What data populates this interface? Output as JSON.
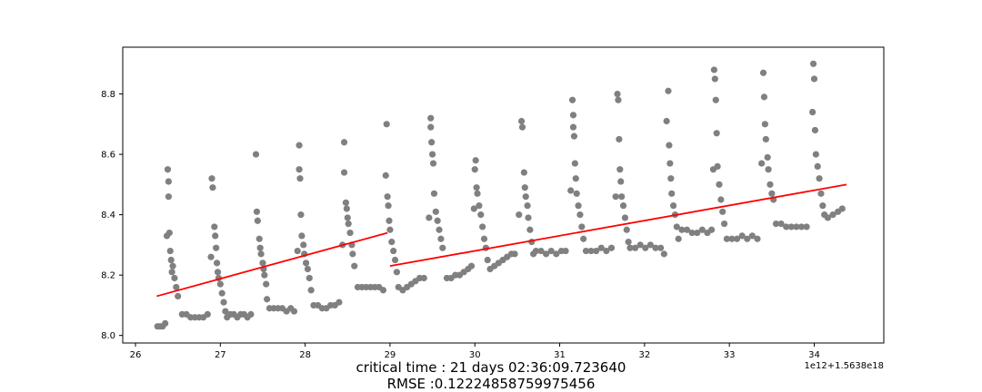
{
  "chart_data": {
    "type": "scatter",
    "title": "",
    "xlabel": "",
    "ylabel": "",
    "xlim": [
      25.85,
      34.82
    ],
    "ylim": [
      7.975,
      8.955
    ],
    "x_offset_text": "1e12+1.5638e18",
    "x_ticks": [
      26,
      27,
      28,
      29,
      30,
      31,
      32,
      33,
      34
    ],
    "x_tick_labels": [
      "26",
      "27",
      "28",
      "29",
      "30",
      "31",
      "32",
      "33",
      "34"
    ],
    "y_ticks": [
      8.0,
      8.2,
      8.4,
      8.6,
      8.8
    ],
    "y_tick_labels": [
      "8.0",
      "8.2",
      "8.4",
      "8.6",
      "8.8"
    ],
    "grid": false,
    "series": [
      {
        "kind": "scatter",
        "color": "#808080",
        "points": [
          [
            26.26,
            8.03
          ],
          [
            26.29,
            8.03
          ],
          [
            26.32,
            8.03
          ],
          [
            26.35,
            8.04
          ],
          [
            26.37,
            8.33
          ],
          [
            26.38,
            8.55
          ],
          [
            26.39,
            8.51
          ],
          [
            26.39,
            8.46
          ],
          [
            26.4,
            8.34
          ],
          [
            26.41,
            8.28
          ],
          [
            26.42,
            8.25
          ],
          [
            26.43,
            8.21
          ],
          [
            26.44,
            8.23
          ],
          [
            26.46,
            8.19
          ],
          [
            26.48,
            8.16
          ],
          [
            26.5,
            8.13
          ],
          [
            26.55,
            8.07
          ],
          [
            26.6,
            8.07
          ],
          [
            26.65,
            8.06
          ],
          [
            26.7,
            8.06
          ],
          [
            26.75,
            8.06
          ],
          [
            26.8,
            8.06
          ],
          [
            26.85,
            8.07
          ],
          [
            26.89,
            8.26
          ],
          [
            26.9,
            8.52
          ],
          [
            26.91,
            8.49
          ],
          [
            26.93,
            8.36
          ],
          [
            26.94,
            8.33
          ],
          [
            26.95,
            8.29
          ],
          [
            26.96,
            8.24
          ],
          [
            26.97,
            8.21
          ],
          [
            26.98,
            8.19
          ],
          [
            27.0,
            8.17
          ],
          [
            27.02,
            8.14
          ],
          [
            27.04,
            8.11
          ],
          [
            27.06,
            8.08
          ],
          [
            27.08,
            8.06
          ],
          [
            27.12,
            8.07
          ],
          [
            27.16,
            8.07
          ],
          [
            27.2,
            8.06
          ],
          [
            27.24,
            8.07
          ],
          [
            27.28,
            8.07
          ],
          [
            27.32,
            8.06
          ],
          [
            27.36,
            8.07
          ],
          [
            27.42,
            8.6
          ],
          [
            27.43,
            8.41
          ],
          [
            27.44,
            8.38
          ],
          [
            27.46,
            8.32
          ],
          [
            27.47,
            8.29
          ],
          [
            27.48,
            8.27
          ],
          [
            27.5,
            8.24
          ],
          [
            27.51,
            8.22
          ],
          [
            27.52,
            8.2
          ],
          [
            27.54,
            8.17
          ],
          [
            27.55,
            8.12
          ],
          [
            27.58,
            8.09
          ],
          [
            27.63,
            8.09
          ],
          [
            27.68,
            8.09
          ],
          [
            27.73,
            8.09
          ],
          [
            27.78,
            8.08
          ],
          [
            27.83,
            8.09
          ],
          [
            27.87,
            8.08
          ],
          [
            27.91,
            8.28
          ],
          [
            27.93,
            8.63
          ],
          [
            27.93,
            8.55
          ],
          [
            27.94,
            8.52
          ],
          [
            27.95,
            8.4
          ],
          [
            27.96,
            8.33
          ],
          [
            27.98,
            8.3
          ],
          [
            27.99,
            8.27
          ],
          [
            28.01,
            8.24
          ],
          [
            28.03,
            8.22
          ],
          [
            28.05,
            8.19
          ],
          [
            28.07,
            8.15
          ],
          [
            28.1,
            8.1
          ],
          [
            28.15,
            8.1
          ],
          [
            28.2,
            8.09
          ],
          [
            28.25,
            8.09
          ],
          [
            28.3,
            8.1
          ],
          [
            28.35,
            8.1
          ],
          [
            28.4,
            8.11
          ],
          [
            28.44,
            8.3
          ],
          [
            28.46,
            8.64
          ],
          [
            28.46,
            8.54
          ],
          [
            28.48,
            8.44
          ],
          [
            28.49,
            8.42
          ],
          [
            28.5,
            8.39
          ],
          [
            28.51,
            8.37
          ],
          [
            28.53,
            8.34
          ],
          [
            28.55,
            8.3
          ],
          [
            28.56,
            8.27
          ],
          [
            28.58,
            8.23
          ],
          [
            28.62,
            8.16
          ],
          [
            28.67,
            8.16
          ],
          [
            28.72,
            8.16
          ],
          [
            28.77,
            8.16
          ],
          [
            28.82,
            8.16
          ],
          [
            28.87,
            8.16
          ],
          [
            28.92,
            8.15
          ],
          [
            28.95,
            8.53
          ],
          [
            28.96,
            8.7
          ],
          [
            28.97,
            8.46
          ],
          [
            28.98,
            8.43
          ],
          [
            28.99,
            8.38
          ],
          [
            29.0,
            8.35
          ],
          [
            29.02,
            8.31
          ],
          [
            29.04,
            8.28
          ],
          [
            29.06,
            8.25
          ],
          [
            29.08,
            8.21
          ],
          [
            29.1,
            8.16
          ],
          [
            29.15,
            8.15
          ],
          [
            29.2,
            8.16
          ],
          [
            29.25,
            8.17
          ],
          [
            29.3,
            8.18
          ],
          [
            29.35,
            8.19
          ],
          [
            29.4,
            8.19
          ],
          [
            29.46,
            8.39
          ],
          [
            29.48,
            8.72
          ],
          [
            29.48,
            8.69
          ],
          [
            29.49,
            8.64
          ],
          [
            29.5,
            8.6
          ],
          [
            29.51,
            8.57
          ],
          [
            29.52,
            8.47
          ],
          [
            29.54,
            8.41
          ],
          [
            29.56,
            8.38
          ],
          [
            29.58,
            8.35
          ],
          [
            29.6,
            8.32
          ],
          [
            29.62,
            8.29
          ],
          [
            29.67,
            8.19
          ],
          [
            29.72,
            8.19
          ],
          [
            29.77,
            8.2
          ],
          [
            29.82,
            8.2
          ],
          [
            29.87,
            8.21
          ],
          [
            29.92,
            8.22
          ],
          [
            29.96,
            8.23
          ],
          [
            29.99,
            8.42
          ],
          [
            30.0,
            8.55
          ],
          [
            30.01,
            8.58
          ],
          [
            30.02,
            8.49
          ],
          [
            30.03,
            8.47
          ],
          [
            30.05,
            8.43
          ],
          [
            30.07,
            8.4
          ],
          [
            30.09,
            8.36
          ],
          [
            30.11,
            8.32
          ],
          [
            30.13,
            8.29
          ],
          [
            30.15,
            8.25
          ],
          [
            30.18,
            8.22
          ],
          [
            30.23,
            8.23
          ],
          [
            30.28,
            8.24
          ],
          [
            30.33,
            8.25
          ],
          [
            30.38,
            8.26
          ],
          [
            30.43,
            8.27
          ],
          [
            30.47,
            8.27
          ],
          [
            30.52,
            8.4
          ],
          [
            30.55,
            8.71
          ],
          [
            30.56,
            8.69
          ],
          [
            30.58,
            8.54
          ],
          [
            30.59,
            8.49
          ],
          [
            30.6,
            8.46
          ],
          [
            30.62,
            8.43
          ],
          [
            30.63,
            8.39
          ],
          [
            30.65,
            8.35
          ],
          [
            30.67,
            8.31
          ],
          [
            30.69,
            8.27
          ],
          [
            30.72,
            8.28
          ],
          [
            30.78,
            8.28
          ],
          [
            30.84,
            8.27
          ],
          [
            30.9,
            8.28
          ],
          [
            30.96,
            8.27
          ],
          [
            31.02,
            8.28
          ],
          [
            31.07,
            8.28
          ],
          [
            31.13,
            8.48
          ],
          [
            31.15,
            8.78
          ],
          [
            31.16,
            8.73
          ],
          [
            31.16,
            8.69
          ],
          [
            31.17,
            8.66
          ],
          [
            31.18,
            8.57
          ],
          [
            31.19,
            8.52
          ],
          [
            31.2,
            8.47
          ],
          [
            31.22,
            8.43
          ],
          [
            31.24,
            8.4
          ],
          [
            31.26,
            8.36
          ],
          [
            31.28,
            8.32
          ],
          [
            31.31,
            8.28
          ],
          [
            31.37,
            8.28
          ],
          [
            31.43,
            8.28
          ],
          [
            31.49,
            8.29
          ],
          [
            31.55,
            8.28
          ],
          [
            31.61,
            8.29
          ],
          [
            31.66,
            8.46
          ],
          [
            31.68,
            8.8
          ],
          [
            31.69,
            8.78
          ],
          [
            31.7,
            8.65
          ],
          [
            31.71,
            8.55
          ],
          [
            31.72,
            8.51
          ],
          [
            31.73,
            8.46
          ],
          [
            31.75,
            8.43
          ],
          [
            31.77,
            8.39
          ],
          [
            31.79,
            8.35
          ],
          [
            31.81,
            8.31
          ],
          [
            31.83,
            8.29
          ],
          [
            31.89,
            8.29
          ],
          [
            31.95,
            8.3
          ],
          [
            32.01,
            8.29
          ],
          [
            32.07,
            8.3
          ],
          [
            32.13,
            8.29
          ],
          [
            32.19,
            8.29
          ],
          [
            32.23,
            8.27
          ],
          [
            32.26,
            8.71
          ],
          [
            32.28,
            8.81
          ],
          [
            32.29,
            8.63
          ],
          [
            32.3,
            8.57
          ],
          [
            32.31,
            8.52
          ],
          [
            32.32,
            8.47
          ],
          [
            32.34,
            8.43
          ],
          [
            32.36,
            8.4
          ],
          [
            32.38,
            8.36
          ],
          [
            32.4,
            8.32
          ],
          [
            32.44,
            8.35
          ],
          [
            32.5,
            8.35
          ],
          [
            32.56,
            8.34
          ],
          [
            32.62,
            8.34
          ],
          [
            32.68,
            8.35
          ],
          [
            32.74,
            8.34
          ],
          [
            32.79,
            8.35
          ],
          [
            32.81,
            8.55
          ],
          [
            32.82,
            8.88
          ],
          [
            32.83,
            8.85
          ],
          [
            32.84,
            8.78
          ],
          [
            32.85,
            8.67
          ],
          [
            32.86,
            8.56
          ],
          [
            32.88,
            8.5
          ],
          [
            32.9,
            8.45
          ],
          [
            32.92,
            8.41
          ],
          [
            32.94,
            8.37
          ],
          [
            32.97,
            8.32
          ],
          [
            33.03,
            8.32
          ],
          [
            33.09,
            8.32
          ],
          [
            33.15,
            8.33
          ],
          [
            33.21,
            8.32
          ],
          [
            33.27,
            8.33
          ],
          [
            33.33,
            8.32
          ],
          [
            33.38,
            8.57
          ],
          [
            33.4,
            8.87
          ],
          [
            33.41,
            8.79
          ],
          [
            33.42,
            8.7
          ],
          [
            33.43,
            8.65
          ],
          [
            33.45,
            8.59
          ],
          [
            33.46,
            8.55
          ],
          [
            33.48,
            8.5
          ],
          [
            33.5,
            8.47
          ],
          [
            33.52,
            8.45
          ],
          [
            33.55,
            8.37
          ],
          [
            33.61,
            8.37
          ],
          [
            33.67,
            8.36
          ],
          [
            33.73,
            8.36
          ],
          [
            33.79,
            8.36
          ],
          [
            33.85,
            8.36
          ],
          [
            33.91,
            8.36
          ],
          [
            33.98,
            8.74
          ],
          [
            33.99,
            8.9
          ],
          [
            34.0,
            8.85
          ],
          [
            34.01,
            8.68
          ],
          [
            34.02,
            8.6
          ],
          [
            34.04,
            8.56
          ],
          [
            34.06,
            8.52
          ],
          [
            34.08,
            8.47
          ],
          [
            34.1,
            8.43
          ],
          [
            34.12,
            8.4
          ],
          [
            34.16,
            8.39
          ],
          [
            34.22,
            8.4
          ],
          [
            34.28,
            8.41
          ],
          [
            34.33,
            8.42
          ]
        ]
      },
      {
        "kind": "line",
        "color": "#ff0000",
        "x": [
          26.25,
          28.97
        ],
        "y": [
          8.13,
          8.34
        ]
      },
      {
        "kind": "line",
        "color": "#ff0000",
        "x": [
          29.0,
          34.38
        ],
        "y": [
          8.23,
          8.5
        ]
      }
    ]
  },
  "caption": {
    "line1": "critical time : 21 days 02:36:09.723640",
    "line2": "RMSE :0.12224858759975456"
  }
}
